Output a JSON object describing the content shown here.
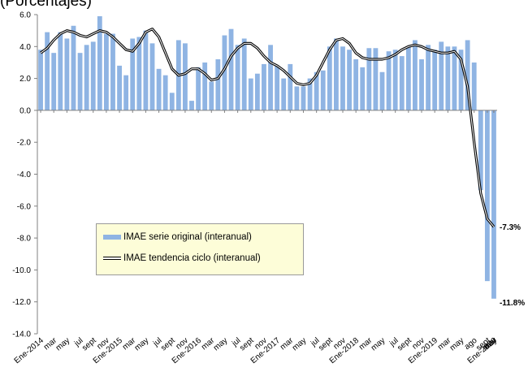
{
  "chart_data": {
    "type": "bar",
    "title": "",
    "subtitle": "(Porcentajes)",
    "ylim": [
      -14,
      6
    ],
    "y_ticks": [
      "6.0",
      "4.0",
      "2.0",
      "0.0",
      "-2.0",
      "-4.0",
      "-6.0",
      "-8.0",
      "-10.0",
      "-12.0",
      "-14.0"
    ],
    "y_tick_values": [
      6,
      4,
      2,
      0,
      -2,
      -4,
      -6,
      -8,
      -10,
      -12,
      -14
    ],
    "x_tick_labels": [
      "Ene-2014",
      "mar",
      "may",
      "jul",
      "sept",
      "nov",
      "Ene-2015",
      "mar",
      "may",
      "jul",
      "sept",
      "nov",
      "Ene-2016",
      "mar",
      "may",
      "jul",
      "sept",
      "nov",
      "Ene-2017",
      "mar",
      "may",
      "jul",
      "sept",
      "nov",
      "Ene-2018",
      "mar",
      "may",
      "jul",
      "sept",
      "nov",
      "Ene-2019",
      "mar",
      "may",
      "ago",
      "sept",
      "nov",
      "Ene-2020",
      "mar",
      "may"
    ],
    "series": [
      {
        "name": "IMAE serie original (interanual)",
        "type": "bar",
        "color": "#8fb4e3",
        "values": [
          3.8,
          4.9,
          3.6,
          4.9,
          4.5,
          5.3,
          3.6,
          4.1,
          4.3,
          5.9,
          4.8,
          4.8,
          2.8,
          2.2,
          4.5,
          4.6,
          5.0,
          4.2,
          2.6,
          2.2,
          1.1,
          4.4,
          4.2,
          0.6,
          2.7,
          3.0,
          1.8,
          3.2,
          4.7,
          5.1,
          4.1,
          4.5,
          2.0,
          2.3,
          2.9,
          4.1,
          2.8,
          2.0,
          2.9,
          1.5,
          1.5,
          2.0,
          2.4,
          2.5,
          4.0,
          4.5,
          4.0,
          3.8,
          3.2,
          2.7,
          3.9,
          3.9,
          2.4,
          3.7,
          3.8,
          3.4,
          4.0,
          4.4,
          3.2,
          4.1,
          3.8,
          4.3,
          4.0,
          4.0,
          3.8,
          4.4,
          3.0,
          -5.0,
          -10.7,
          -11.8
        ]
      },
      {
        "name": "IMAE tendencia ciclo (interanual)",
        "type": "line",
        "color": "#000000",
        "values": [
          3.6,
          3.9,
          4.4,
          4.8,
          5.0,
          4.9,
          4.7,
          4.6,
          4.8,
          5.0,
          4.9,
          4.6,
          4.2,
          3.8,
          3.7,
          4.2,
          4.9,
          5.1,
          4.6,
          3.6,
          2.6,
          2.2,
          2.3,
          2.6,
          2.6,
          2.3,
          1.9,
          2.0,
          2.6,
          3.4,
          3.9,
          4.2,
          4.2,
          3.9,
          3.4,
          3.0,
          2.8,
          2.5,
          2.1,
          1.7,
          1.6,
          1.7,
          2.2,
          3.0,
          3.8,
          4.4,
          4.5,
          4.2,
          3.6,
          3.3,
          3.2,
          3.2,
          3.2,
          3.3,
          3.5,
          3.8,
          4.0,
          4.1,
          4.0,
          3.8,
          3.7,
          3.6,
          3.6,
          3.7,
          3.2,
          1.5,
          -2.0,
          -5.2,
          -6.8,
          -7.3
        ]
      }
    ],
    "annotations": [
      "-7.3%",
      "-11.8%"
    ],
    "legend_position": "bottom-left"
  }
}
